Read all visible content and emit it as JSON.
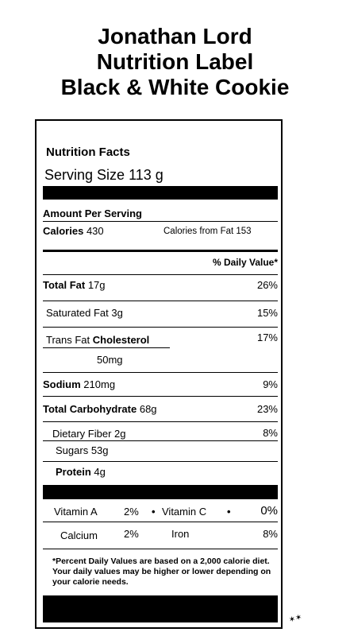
{
  "title_lines": [
    "Jonathan Lord",
    "Nutrition Label",
    "Black & White Cookie"
  ],
  "label": {
    "heading": "Nutrition  Facts",
    "serving_size_label": "Serving Size",
    "serving_size_value": "113 g",
    "amount_per_serving": "Amount Per Serving",
    "calories_label": "Calories",
    "calories_value": "430",
    "calories_from_fat_label": "Calories from Fat",
    "calories_from_fat_value": "153",
    "daily_value_header": "% Daily Value*",
    "rows": {
      "total_fat": {
        "label": "Total Fat",
        "amount": "17g",
        "dv": "26%"
      },
      "saturated_fat": {
        "label": "Saturated Fat",
        "amount": "3g",
        "dv": "15%"
      },
      "trans_fat": {
        "label": "Trans Fat"
      },
      "cholesterol": {
        "label": "Cholesterol",
        "amount": "50mg",
        "dv": "17%"
      },
      "sodium": {
        "label": "Sodium",
        "amount": "210mg",
        "dv": "9%"
      },
      "total_carb": {
        "label": "Total Carbohydrate",
        "amount": "68g",
        "dv": "23%"
      },
      "dietary_fiber": {
        "label": "Dietary Fiber",
        "amount": "2g",
        "dv": "8%"
      },
      "sugars": {
        "label": "Sugars",
        "amount": "53g"
      },
      "protein": {
        "label": "Protein",
        "amount": "4g"
      }
    },
    "vitamins": {
      "vitamin_a": {
        "label": "Vitamin A",
        "dv": "2%"
      },
      "vitamin_c": {
        "label": "Vitamin C",
        "dv": "0%"
      },
      "calcium": {
        "label": "Calcium",
        "dv": "2%"
      },
      "iron": {
        "label": "Iron",
        "dv": "8%"
      },
      "bullet": "•"
    },
    "footnote": "*Percent Daily Values are based on a 2,000 calorie diet. Your daily values may be higher or lower depending on your calorie needs."
  }
}
